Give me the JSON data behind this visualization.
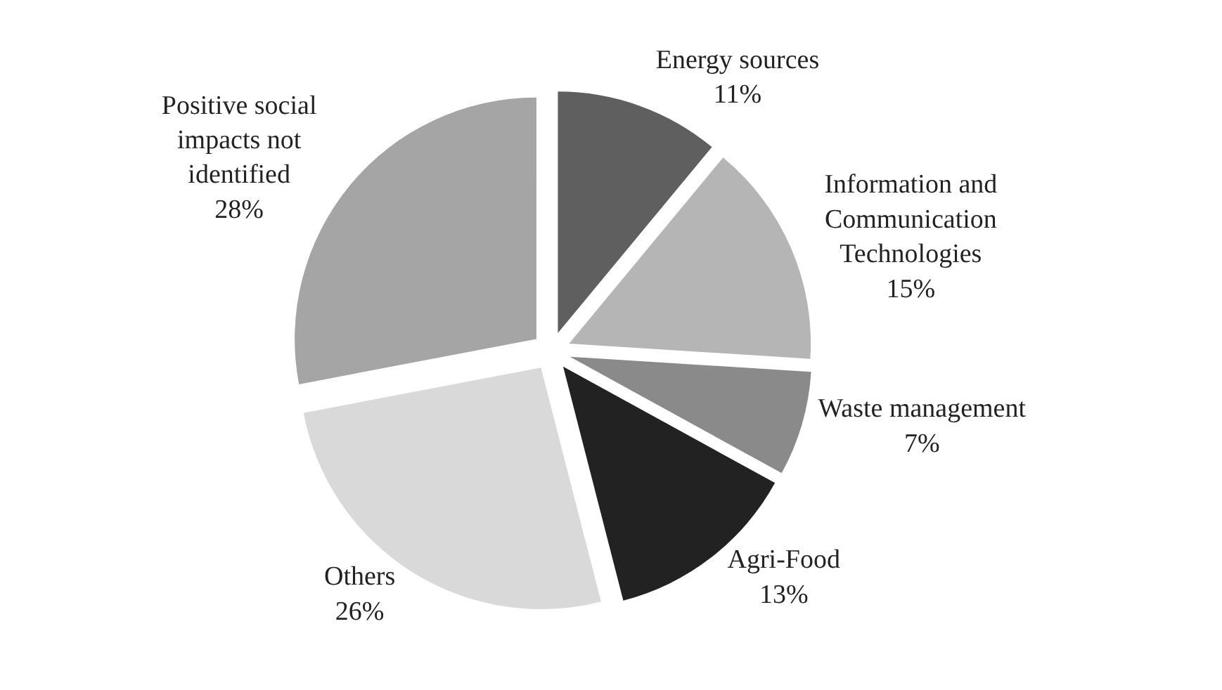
{
  "chart_data": {
    "type": "pie",
    "categories": [
      "Energy sources",
      "Information and Communication Technologies",
      "Waste management",
      "Agri-Food",
      "Others",
      "Positive social impacts not identified"
    ],
    "values": [
      11,
      15,
      7,
      13,
      26,
      28
    ],
    "value_labels": [
      "11%",
      "15%",
      "7%",
      "13%",
      "26%",
      "28%"
    ],
    "colors": [
      "#5f5f5f",
      "#b5b5b5",
      "#8a8a8a",
      "#222222",
      "#d9d9d9",
      "#a5a5a5"
    ],
    "legend": false
  }
}
